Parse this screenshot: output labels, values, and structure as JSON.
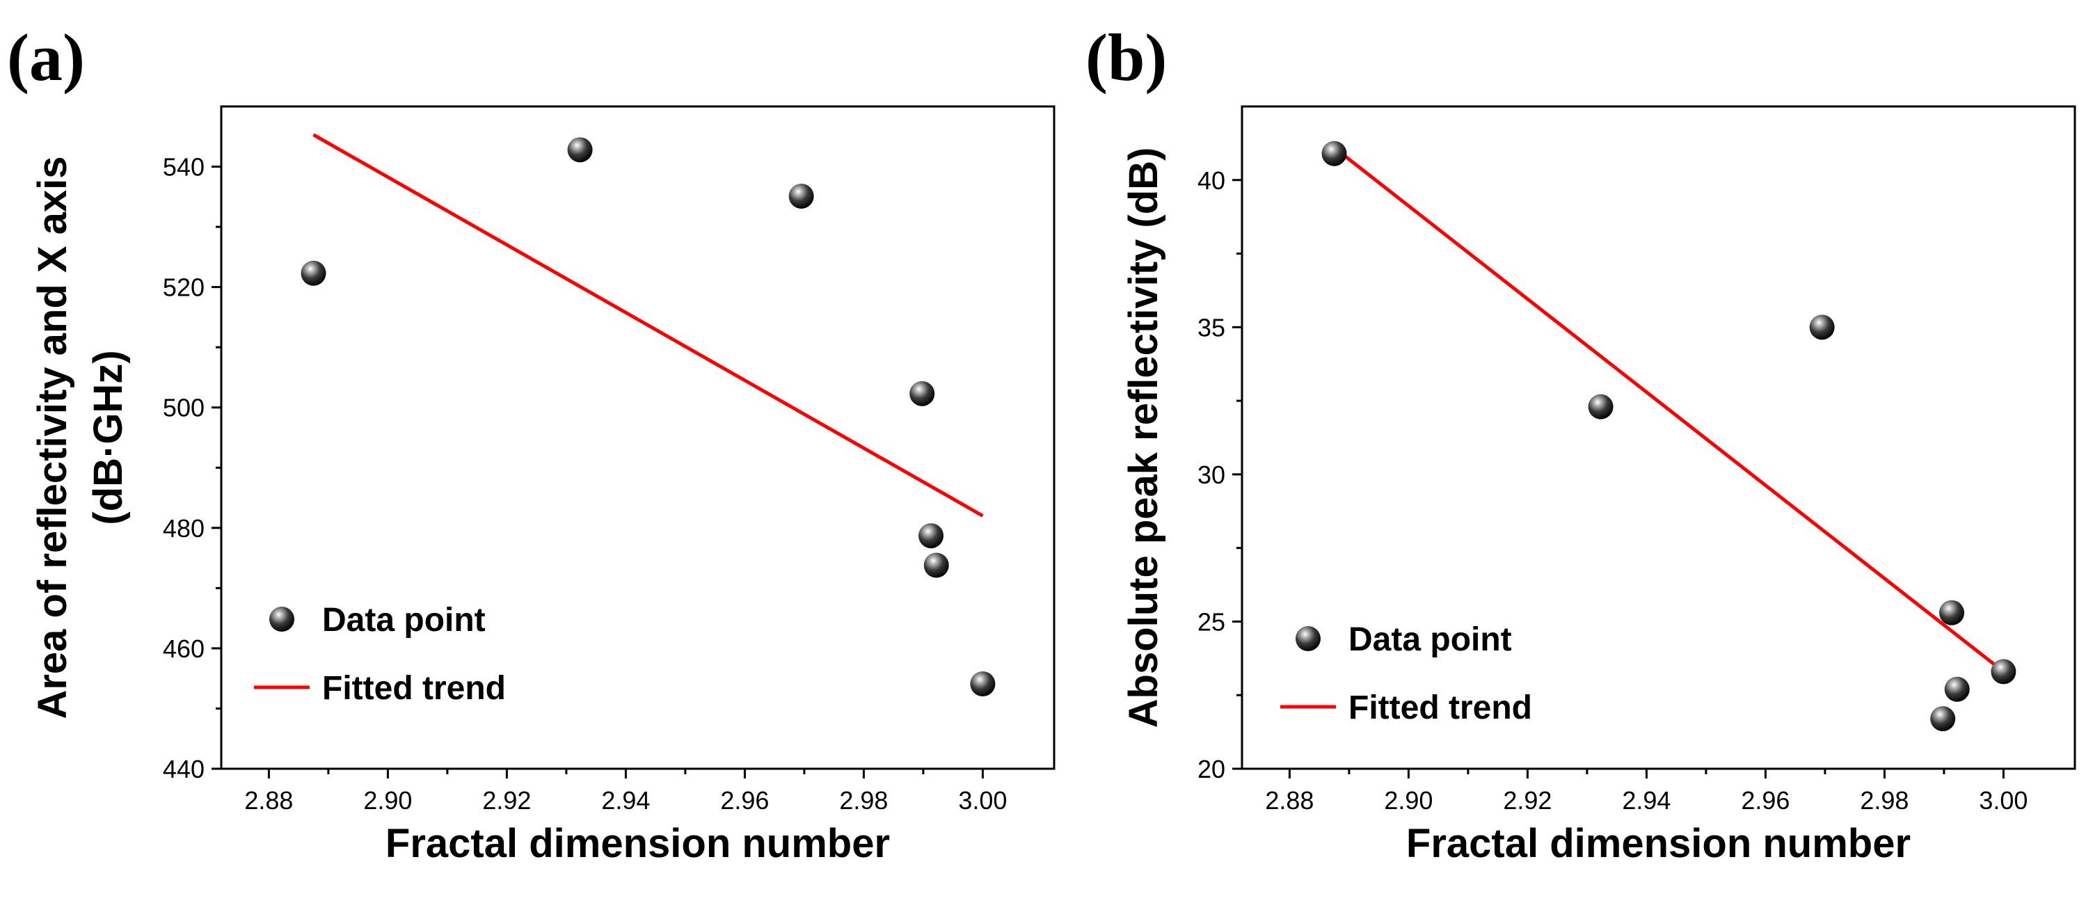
{
  "chart_data": [
    {
      "panel_label": "(a)",
      "type": "scatter",
      "xlabel": "Fractal dimension number",
      "ylabel_line1": "Area of reflectivity and X axis",
      "ylabel_line2": "(dB·GHz)",
      "xlim": [
        2.872,
        3.012
      ],
      "ylim": [
        440,
        550
      ],
      "xticks": [
        2.88,
        2.9,
        2.92,
        2.94,
        2.96,
        2.98,
        3.0
      ],
      "xtick_labels": [
        "2.88",
        "2.90",
        "2.92",
        "2.94",
        "2.96",
        "2.98",
        "3.00"
      ],
      "yticks": [
        440,
        460,
        480,
        500,
        520,
        540
      ],
      "ytick_labels": [
        "440",
        "460",
        "480",
        "500",
        "520",
        "540"
      ],
      "series": [
        {
          "name": "Data point",
          "kind": "points",
          "x": [
            2.8875,
            2.9323,
            2.9695,
            2.9898,
            2.9913,
            2.9922,
            3.0
          ],
          "y": [
            522.3,
            542.8,
            535.1,
            502.3,
            478.7,
            473.8,
            454.1
          ],
          "color": "#000000"
        },
        {
          "name": "Fitted trend",
          "kind": "line",
          "x": [
            2.8875,
            3.0
          ],
          "y": [
            545.3,
            482.0
          ],
          "color": "#ff0000"
        }
      ],
      "legend": {
        "items": [
          "Data point",
          "Fitted trend"
        ],
        "placement": "bottom-left"
      }
    },
    {
      "panel_label": "(b)",
      "type": "scatter",
      "xlabel": "Fractal dimension number",
      "ylabel_line1": "Absolute peak reflectivity (dB)",
      "ylabel_line2": "",
      "xlim": [
        2.872,
        3.012
      ],
      "ylim": [
        20,
        42.5
      ],
      "xticks": [
        2.88,
        2.9,
        2.92,
        2.94,
        2.96,
        2.98,
        3.0
      ],
      "xtick_labels": [
        "2.88",
        "2.90",
        "2.92",
        "2.94",
        "2.96",
        "2.98",
        "3.00"
      ],
      "yticks": [
        20,
        25,
        30,
        35,
        40
      ],
      "ytick_labels": [
        "20",
        "25",
        "30",
        "35",
        "40"
      ],
      "series": [
        {
          "name": "Data point",
          "kind": "points",
          "x": [
            2.8875,
            2.9323,
            2.9695,
            2.9898,
            2.9913,
            2.9922,
            3.0
          ],
          "y": [
            40.9,
            32.3,
            35.0,
            21.7,
            25.3,
            22.7,
            23.3
          ],
          "color": "#000000"
        },
        {
          "name": "Fitted trend",
          "kind": "line",
          "x": [
            2.8875,
            3.0
          ],
          "y": [
            41.1,
            23.3
          ],
          "color": "#ff0000"
        }
      ],
      "legend": {
        "items": [
          "Data point",
          "Fitted trend"
        ],
        "placement": "bottom-left"
      }
    }
  ]
}
